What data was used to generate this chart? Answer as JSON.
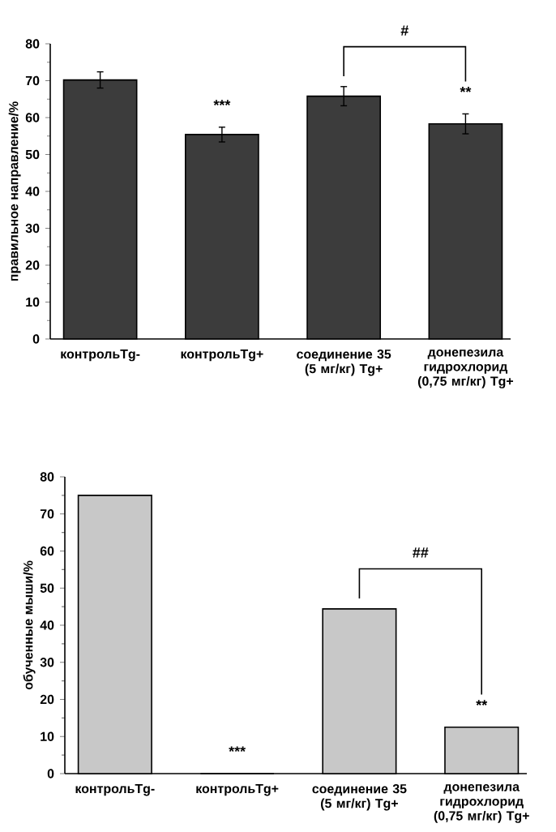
{
  "chart_data": [
    {
      "type": "bar",
      "ylabel": "правильное направление/%",
      "categories": [
        "контрольTg-",
        "контрольTg+",
        "соединение 35 (5 мг/кг) Tg+",
        "донепезила гидрохлорид (0,75 мг/кг) Tg+"
      ],
      "values": [
        70.2,
        55.4,
        65.8,
        58.3
      ],
      "errors": [
        2.2,
        2,
        2.6,
        2.7
      ],
      "color": "#3c3c3c",
      "ylim": [
        0,
        80
      ],
      "yticks": [
        0,
        10,
        20,
        30,
        40,
        50,
        60,
        70,
        80
      ],
      "annotations": [
        "***",
        "**",
        "#"
      ]
    },
    {
      "type": "bar",
      "ylabel": "обученные мыши/%",
      "categories": [
        "контрольTg-",
        "контрольTg+",
        "соединение 35 (5 мг/кг) Tg+",
        "донепезила гидрохлорид (0,75 мг/кг) Tg+"
      ],
      "values": [
        75,
        0,
        44.4,
        12.5
      ],
      "color": "#c8c8c8",
      "ylim": [
        0,
        80
      ],
      "yticks": [
        0,
        10,
        20,
        30,
        40,
        50,
        60,
        70,
        80
      ],
      "annotations": [
        "***",
        "**",
        "##"
      ]
    }
  ]
}
